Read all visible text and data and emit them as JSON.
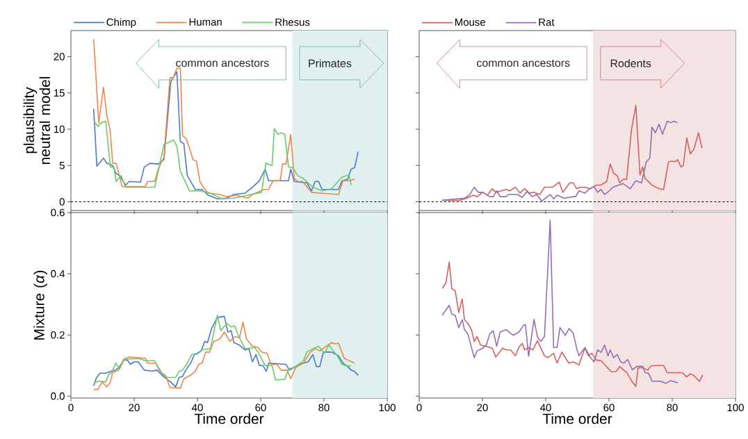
{
  "chart_data": [
    {
      "type": "line",
      "ylabel": "plausibility neutral model",
      "xlim": [
        0,
        100
      ],
      "xticks": [
        0,
        20,
        40,
        60,
        80,
        100
      ],
      "ylim": [
        -1.2,
        23.6
      ],
      "yticks": [
        0,
        5,
        10,
        15,
        20
      ],
      "tick_labels": "y",
      "legend": "top left",
      "marker": "none",
      "line_style": "solid",
      "annotations": [
        "common ancestors",
        "Primates"
      ],
      "bands": [
        {
          "axis": "x",
          "from": 70,
          "to": 100,
          "color": "#dff0ee"
        }
      ],
      "ref_lines": [
        {
          "axis": "y",
          "value": 0,
          "color": "#000000",
          "line_style": "dashed"
        }
      ],
      "series": [
        {
          "name": "Chimp",
          "color": "#4878d0",
          "x": [
            7.2,
            8.2,
            10.3,
            11.4,
            13.2,
            14.3,
            15.4,
            17.3,
            18.4,
            22,
            23.2,
            25,
            27.6,
            29.4,
            31.6,
            33.5,
            34.6,
            35.7,
            36.8,
            39.3,
            41.5,
            43.4,
            46.3,
            49.3,
            51.5,
            55.1,
            57.4,
            59.6,
            61.4,
            62.5,
            68.8,
            69.5,
            70.6,
            74.6,
            76.1,
            77.2,
            78.3,
            79.4,
            84.6,
            85.7,
            87.5,
            88.6,
            89.7,
            90.8
          ],
          "values": [
            12.8,
            4.9,
            6.0,
            5.3,
            5.0,
            3.9,
            3.6,
            2.3,
            2.8,
            2.7,
            4.8,
            5.3,
            5.2,
            5.8,
            16.6,
            17.9,
            8.3,
            8.0,
            3.6,
            1.7,
            1.7,
            0.9,
            0.4,
            0.5,
            1.0,
            1.2,
            2.0,
            2.9,
            4.5,
            2.9,
            2.9,
            4.5,
            2.8,
            2.6,
            1.5,
            2.8,
            2.8,
            1.7,
            1.7,
            2.9,
            3.1,
            4.5,
            4.7,
            6.9
          ]
        },
        {
          "name": "Human",
          "color": "#ee854a",
          "x": [
            7.2,
            8.8,
            10.3,
            11.4,
            12.4,
            13.2,
            14.3,
            16.2,
            17.3,
            23.5,
            24.3,
            26.5,
            27.6,
            29.4,
            31.3,
            32.4,
            33.5,
            34.6,
            35.3,
            36.4,
            37.5,
            38.6,
            39.7,
            40.8,
            41.9,
            43.4,
            47,
            49.3,
            52.2,
            55.9,
            57.4,
            61,
            62.5,
            63.9,
            66.2,
            66.9,
            68,
            69.5,
            70.6,
            71.7,
            73.2,
            76.1,
            78.7,
            84.6,
            86,
            87.5,
            89.7
          ],
          "values": [
            22.4,
            10.9,
            15.8,
            11.8,
            9.9,
            5.3,
            5.3,
            2.1,
            2.1,
            2.1,
            2.8,
            2.8,
            4.5,
            6.1,
            17.1,
            17.1,
            18.4,
            18.4,
            9.1,
            8.7,
            7.4,
            5.8,
            5.6,
            2.8,
            2.0,
            1.2,
            1.0,
            0.7,
            0.9,
            0.5,
            1.0,
            1.7,
            1.7,
            2.9,
            2.9,
            5.2,
            5.2,
            9.3,
            3.2,
            2.8,
            2.8,
            1.3,
            1.2,
            1.0,
            2.9,
            2.9,
            3.1
          ]
        },
        {
          "name": "Rhesus",
          "color": "#6acc64",
          "x": [
            7.2,
            8.5,
            9.6,
            11,
            12.5,
            13.6,
            14.3,
            15.9,
            17.3,
            26.5,
            27.6,
            29.4,
            32.4,
            33.5,
            34.6,
            37.5,
            40.4,
            43.4,
            47.8,
            51.5,
            55.9,
            60.3,
            61.6,
            63.6,
            64.3,
            65.4,
            66.5,
            67.6,
            68.8,
            70.2,
            71.7,
            73.5,
            76.5,
            79.4,
            82.4,
            85.7,
            87.9,
            88.6
          ],
          "values": [
            11.2,
            10.4,
            10.9,
            11.1,
            4.8,
            4.8,
            2.8,
            3.6,
            2.0,
            2.0,
            4.2,
            7.9,
            8.5,
            7.7,
            4.2,
            1.5,
            1.5,
            1.3,
            0.4,
            0.5,
            0.9,
            1.3,
            5.3,
            5.0,
            10.1,
            9.3,
            9.5,
            9.3,
            4.8,
            4.7,
            3.6,
            3.2,
            2.0,
            1.5,
            1.8,
            3.4,
            3.7,
            2.3
          ]
        }
      ]
    },
    {
      "type": "line",
      "xlim": [
        0,
        100
      ],
      "xticks": [
        0,
        20,
        40,
        60,
        80,
        100
      ],
      "ylim": [
        -1.2,
        23.6
      ],
      "yticks": [
        0,
        5,
        10,
        15,
        20
      ],
      "tick_labels": false,
      "legend": "top left",
      "marker": "none",
      "line_style": "solid",
      "annotations": [
        "common ancestors",
        "Rodents"
      ],
      "bands": [
        {
          "axis": "x",
          "from": 55,
          "to": 100,
          "color": "#f3e3e3"
        }
      ],
      "ref_lines": [
        {
          "axis": "y",
          "value": 0,
          "color": "#000000",
          "line_style": "dashed"
        }
      ],
      "series": [
        {
          "name": "Mouse",
          "color": "#d65f5f",
          "x": [
            7.3,
            12.8,
            15,
            17.2,
            18.3,
            20.1,
            21.6,
            23.1,
            24.2,
            26,
            27.5,
            28.6,
            30.4,
            31.9,
            33.3,
            34.8,
            36.3,
            38.1,
            39.6,
            42.1,
            44.3,
            45.4,
            47.6,
            48.7,
            49.8,
            50.9,
            52.4,
            54,
            56,
            57.5,
            59.3,
            60.4,
            61.5,
            62.6,
            63.4,
            64.5,
            65.6,
            67.1,
            68.5,
            69.8,
            70.7,
            71.4,
            73.6,
            75.8,
            77.3,
            78.8,
            79.9,
            80.9,
            81.7,
            82.8,
            83.5,
            84.6,
            85.7,
            86.8,
            88.3,
            89.4
          ],
          "values": [
            0.2,
            0.2,
            0.5,
            0.9,
            0.7,
            1.3,
            0.9,
            1.8,
            1.3,
            1.5,
            1.7,
            1.5,
            2.0,
            1.2,
            1.8,
            1.2,
            1.3,
            1.0,
            2.0,
            2.0,
            2.7,
            1.3,
            2.6,
            2.6,
            1.8,
            2.0,
            2.0,
            1.8,
            2.3,
            2.3,
            2.8,
            5.2,
            3.9,
            3.6,
            2.6,
            3.1,
            3.1,
            9.9,
            13.3,
            3.7,
            4.8,
            3.2,
            2.3,
            1.8,
            1.7,
            5.5,
            5.6,
            5.5,
            5.8,
            4.8,
            5.0,
            8.8,
            6.6,
            7.2,
            9.5,
            7.4
          ]
        },
        {
          "name": "Rat",
          "color": "#956cb4",
          "x": [
            7.3,
            12.1,
            14.3,
            15.8,
            17.4,
            18.7,
            20.1,
            22.3,
            23.4,
            24.5,
            25.6,
            27.5,
            28.2,
            31.1,
            32.6,
            34.1,
            35.7,
            37.1,
            38.8,
            41.4,
            42.5,
            43.6,
            45.8,
            48.7,
            49.5,
            50.5,
            52.4,
            54,
            55.3,
            56.4,
            57.5,
            58.6,
            60.1,
            61.2,
            63,
            64.5,
            66.7,
            68.5,
            70.3,
            71.8,
            72.9,
            73.6,
            74.7,
            75.8,
            76.9,
            78.4,
            79.5,
            80.6,
            81.7
          ],
          "values": [
            0.2,
            0.4,
            0.5,
            0.9,
            2.0,
            1.3,
            1.3,
            0.7,
            0.7,
            1.5,
            0.7,
            0.7,
            1.0,
            1.0,
            0.6,
            1.4,
            0.7,
            1.0,
            0.1,
            1.0,
            0.4,
            0.9,
            0.5,
            0.7,
            0.7,
            1.5,
            1.2,
            1.8,
            2.1,
            1.3,
            1.7,
            1.0,
            1.5,
            2.0,
            2.3,
            2.5,
            1.8,
            2.9,
            2.6,
            5.5,
            6.0,
            10.3,
            9.5,
            10.7,
            9.3,
            11.1,
            10.9,
            11.1,
            10.9
          ]
        }
      ]
    },
    {
      "type": "line",
      "xlabel": "Time order",
      "ylabel": "Mixture (*α*)",
      "xlim": [
        0,
        100
      ],
      "xticks": [
        0,
        20,
        40,
        60,
        80,
        100
      ],
      "ylim": [
        -0.006,
        0.6
      ],
      "yticks": [
        {
          "value": 0,
          "label": "0.0"
        },
        {
          "value": 0.2,
          "label": "0.2"
        },
        {
          "value": 0.4,
          "label": "0.4"
        },
        {
          "value": 0.6,
          "label": "0.6"
        }
      ],
      "marker": "none",
      "line_style": "solid",
      "bands": [
        {
          "axis": "x",
          "from": 70,
          "to": 100,
          "color": "#dff0ee"
        }
      ],
      "series": [
        {
          "color": "#4878d0",
          "x": [
            7.2,
            8.1,
            9.2,
            11,
            12.5,
            14,
            15.1,
            16.9,
            18,
            18.8,
            19.9,
            21.3,
            23.2,
            25.7,
            27.2,
            29.4,
            31.6,
            33.1,
            34.2,
            35.3,
            36.8,
            37.9,
            39,
            40.1,
            41.2,
            42.3,
            43.2,
            44.5,
            46.3,
            48.5,
            49.6,
            50.7,
            51.5,
            53.3,
            55.1,
            56.3,
            57.4,
            58.5,
            59.6,
            60.7,
            61.8,
            62.5,
            68,
            69.1,
            72.1,
            75,
            76.5,
            77.6,
            78.7,
            79.8,
            82.4,
            84.6,
            86,
            87.5,
            88.6,
            89.7,
            90.8
          ],
          "values": [
            0.034,
            0.061,
            0.075,
            0.075,
            0.081,
            0.085,
            0.093,
            0.12,
            0.116,
            0.104,
            0.112,
            0.112,
            0.085,
            0.082,
            0.085,
            0.063,
            0.046,
            0.03,
            0.061,
            0.065,
            0.093,
            0.108,
            0.136,
            0.14,
            0.148,
            0.179,
            0.175,
            0.222,
            0.257,
            0.261,
            0.21,
            0.214,
            0.175,
            0.167,
            0.151,
            0.155,
            0.112,
            0.136,
            0.1,
            0.1,
            0.081,
            0.108,
            0.104,
            0.085,
            0.104,
            0.112,
            0.136,
            0.097,
            0.097,
            0.144,
            0.144,
            0.132,
            0.108,
            0.097,
            0.085,
            0.081,
            0.068
          ]
        },
        {
          "color": "#ee854a",
          "x": [
            7.2,
            8.5,
            9.9,
            11.3,
            12.4,
            13.2,
            15.1,
            16.6,
            18.4,
            23.5,
            24.3,
            26.8,
            28.7,
            30.1,
            31.3,
            34.6,
            35.7,
            37.9,
            39.3,
            40.4,
            41.5,
            42.6,
            43.8,
            45.2,
            47.1,
            48.5,
            50.3,
            51.8,
            53.3,
            54.4,
            55.5,
            57.4,
            59.2,
            60.3,
            62.1,
            63.2,
            65.1,
            66.5,
            68.4,
            69.5,
            71,
            73.5,
            75.7,
            77.2,
            78.7,
            80.1,
            82.4,
            83.5,
            84.6,
            86.4,
            87.5,
            89.7
          ],
          "values": [
            0.022,
            0.022,
            0.046,
            0.031,
            0.044,
            0.077,
            0.085,
            0.12,
            0.128,
            0.124,
            0.108,
            0.108,
            0.077,
            0.065,
            0.028,
            0.026,
            0.057,
            0.069,
            0.081,
            0.104,
            0.108,
            0.144,
            0.144,
            0.179,
            0.187,
            0.21,
            0.179,
            0.195,
            0.191,
            0.242,
            0.187,
            0.163,
            0.159,
            0.144,
            0.14,
            0.104,
            0.104,
            0.085,
            0.085,
            0.057,
            0.093,
            0.108,
            0.144,
            0.155,
            0.148,
            0.159,
            0.175,
            0.171,
            0.173,
            0.124,
            0.118,
            0.108
          ]
        },
        {
          "color": "#6acc64",
          "x": [
            7.2,
            8.5,
            11,
            12.1,
            12.9,
            14.2,
            15.4,
            16.9,
            21.3,
            23.5,
            26.5,
            27.9,
            30.1,
            33.1,
            34.2,
            35.3,
            36.8,
            38.2,
            39.7,
            41.5,
            44.1,
            46.3,
            47.4,
            49.3,
            50.7,
            51.8,
            52.9,
            55.1,
            58.1,
            59.2,
            61.4,
            63.6,
            64.7,
            67.6,
            68.8,
            70.2,
            72.1,
            73.5,
            74.6,
            76.5,
            78.3,
            80.1,
            81.6,
            82.7,
            84.2,
            85.7,
            87.1,
            88.6
          ],
          "values": [
            0.042,
            0.049,
            0.047,
            0.073,
            0.077,
            0.108,
            0.089,
            0.12,
            0.124,
            0.116,
            0.116,
            0.085,
            0.061,
            0.061,
            0.081,
            0.085,
            0.108,
            0.136,
            0.14,
            0.151,
            0.155,
            0.265,
            0.214,
            0.238,
            0.226,
            0.23,
            0.199,
            0.155,
            0.159,
            0.144,
            0.1,
            0.1,
            0.053,
            0.055,
            0.089,
            0.093,
            0.104,
            0.116,
            0.144,
            0.155,
            0.163,
            0.14,
            0.167,
            0.151,
            0.132,
            0.104,
            0.099,
            0.099
          ]
        }
      ]
    },
    {
      "type": "line",
      "xlabel": "Time order",
      "xlim": [
        0,
        100
      ],
      "xticks": [
        0,
        20,
        40,
        60,
        80,
        100
      ],
      "ylim": [
        -0.006,
        0.6
      ],
      "yticks": [
        0,
        0.2,
        0.4,
        0.6
      ],
      "tick_labels": "x",
      "marker": "none",
      "line_style": "solid",
      "bands": [
        {
          "axis": "x",
          "from": 55,
          "to": 100,
          "color": "#f3e3e3"
        }
      ],
      "series": [
        {
          "color": "#d65f5f",
          "x": [
            7.3,
            8.4,
            9.5,
            10.3,
            11.4,
            12.5,
            13.6,
            14.3,
            15.4,
            16.5,
            17.4,
            18.3,
            19.4,
            20.9,
            23.1,
            24.2,
            26.4,
            27.5,
            28.9,
            30.4,
            31.5,
            32.6,
            33.3,
            34.8,
            35.9,
            37.4,
            39.6,
            40.7,
            42.5,
            43.6,
            45.1,
            47.3,
            48.7,
            50.5,
            52.4,
            53.5,
            54.6,
            56,
            57.5,
            59,
            60.8,
            62.3,
            63.4,
            65.6,
            67.4,
            68.5,
            69.2,
            70.7,
            72.2,
            73.3,
            75.1,
            77.3,
            78.4,
            83.2,
            84.5,
            85.7,
            86.8,
            88.6,
            89.6
          ],
          "values": [
            0.352,
            0.369,
            0.438,
            0.352,
            0.344,
            0.273,
            0.318,
            0.25,
            0.238,
            0.218,
            0.179,
            0.195,
            0.167,
            0.163,
            0.157,
            0.128,
            0.157,
            0.151,
            0.151,
            0.132,
            0.159,
            0.173,
            0.151,
            0.159,
            0.151,
            0.181,
            0.132,
            0.126,
            0.14,
            0.108,
            0.144,
            0.108,
            0.112,
            0.102,
            0.157,
            0.132,
            0.14,
            0.118,
            0.116,
            0.099,
            0.079,
            0.081,
            0.097,
            0.077,
            0.046,
            0.032,
            0.093,
            0.093,
            0.085,
            0.099,
            0.1,
            0.1,
            0.077,
            0.077,
            0.063,
            0.073,
            0.068,
            0.048,
            0.069
          ]
        },
        {
          "color": "#956cb4",
          "x": [
            7.3,
            8.4,
            9.5,
            10.3,
            11.4,
            12.5,
            13.6,
            14.3,
            15.4,
            17.4,
            18.3,
            19.8,
            21.2,
            22.3,
            23.4,
            24.5,
            25.6,
            27.5,
            29.7,
            31.5,
            33,
            33.6,
            34.6,
            36.3,
            37.4,
            38.5,
            39.6,
            41.4,
            42.5,
            43.6,
            44.5,
            46.2,
            47.4,
            48.7,
            49.8,
            50.5,
            52.4,
            54,
            55.3,
            56.4,
            57.5,
            58.6,
            59.7,
            60.4,
            61.5,
            62.6,
            63.7,
            64.8,
            65.9,
            67.4,
            68.9,
            70.7,
            71.4,
            72.5,
            73.6,
            76.2,
            78,
            79.5,
            81.7
          ],
          "values": [
            0.264,
            0.281,
            0.297,
            0.268,
            0.264,
            0.224,
            0.25,
            0.218,
            0.203,
            0.126,
            0.148,
            0.155,
            0.167,
            0.203,
            0.214,
            0.163,
            0.21,
            0.217,
            0.199,
            0.209,
            0.232,
            0.234,
            0.13,
            0.251,
            0.193,
            0.179,
            0.195,
            0.575,
            0.159,
            0.159,
            0.224,
            0.199,
            0.221,
            0.206,
            0.155,
            0.132,
            0.159,
            0.128,
            0.112,
            0.151,
            0.143,
            0.167,
            0.132,
            0.151,
            0.126,
            0.136,
            0.112,
            0.108,
            0.12,
            0.086,
            0.098,
            0.098,
            0.077,
            0.075,
            0.049,
            0.049,
            0.042,
            0.051,
            0.044
          ]
        }
      ]
    }
  ]
}
